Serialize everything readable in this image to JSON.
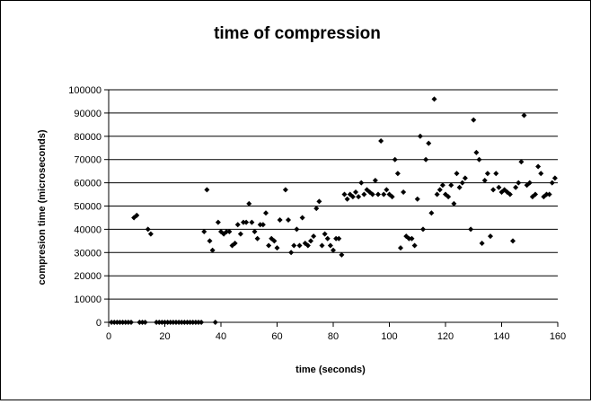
{
  "chart_data": {
    "type": "scatter",
    "title": "time of compression",
    "xlabel": "time (seconds)",
    "ylabel": "compresion time (microseconds)",
    "xlim": [
      0,
      160
    ],
    "ylim": [
      0,
      100000
    ],
    "x_ticks": [
      "0",
      "20",
      "40",
      "60",
      "80",
      "100",
      "120",
      "140",
      "160"
    ],
    "y_ticks": [
      "0",
      "10000",
      "20000",
      "30000",
      "40000",
      "50000",
      "60000",
      "70000",
      "80000",
      "90000",
      "100000"
    ],
    "grid": "horizontal",
    "legend": "none",
    "marker_color": "#000000",
    "marker": "diamond",
    "points": [
      [
        1,
        0
      ],
      [
        2,
        0
      ],
      [
        3,
        0
      ],
      [
        4,
        0
      ],
      [
        5,
        0
      ],
      [
        6,
        0
      ],
      [
        7,
        0
      ],
      [
        8,
        0
      ],
      [
        9,
        45000
      ],
      [
        10,
        46000
      ],
      [
        11,
        0
      ],
      [
        12,
        0
      ],
      [
        13,
        0
      ],
      [
        14,
        40000
      ],
      [
        15,
        38000
      ],
      [
        17,
        0
      ],
      [
        18,
        0
      ],
      [
        19,
        0
      ],
      [
        20,
        0
      ],
      [
        21,
        0
      ],
      [
        22,
        0
      ],
      [
        23,
        0
      ],
      [
        24,
        0
      ],
      [
        25,
        0
      ],
      [
        26,
        0
      ],
      [
        27,
        0
      ],
      [
        28,
        0
      ],
      [
        29,
        0
      ],
      [
        30,
        0
      ],
      [
        31,
        0
      ],
      [
        32,
        0
      ],
      [
        33,
        0
      ],
      [
        35,
        57000
      ],
      [
        34,
        39000
      ],
      [
        36,
        35000
      ],
      [
        37,
        31000
      ],
      [
        38,
        0
      ],
      [
        39,
        43000
      ],
      [
        40,
        39000
      ],
      [
        41,
        38000
      ],
      [
        42,
        39000
      ],
      [
        43,
        39000
      ],
      [
        44,
        33000
      ],
      [
        45,
        34000
      ],
      [
        46,
        42000
      ],
      [
        47,
        38000
      ],
      [
        48,
        43000
      ],
      [
        49,
        43000
      ],
      [
        50,
        51000
      ],
      [
        51,
        43000
      ],
      [
        52,
        39000
      ],
      [
        53,
        36000
      ],
      [
        54,
        42000
      ],
      [
        55,
        42000
      ],
      [
        56,
        47000
      ],
      [
        57,
        33000
      ],
      [
        58,
        36000
      ],
      [
        59,
        35000
      ],
      [
        60,
        32000
      ],
      [
        61,
        44000
      ],
      [
        63,
        57000
      ],
      [
        64,
        44000
      ],
      [
        65,
        30000
      ],
      [
        66,
        33000
      ],
      [
        67,
        40000
      ],
      [
        68,
        33000
      ],
      [
        69,
        45000
      ],
      [
        70,
        34000
      ],
      [
        71,
        33000
      ],
      [
        72,
        35000
      ],
      [
        73,
        37000
      ],
      [
        74,
        49000
      ],
      [
        75,
        52000
      ],
      [
        76,
        33000
      ],
      [
        77,
        38000
      ],
      [
        78,
        36000
      ],
      [
        79,
        33000
      ],
      [
        80,
        31000
      ],
      [
        81,
        36000
      ],
      [
        82,
        36000
      ],
      [
        83,
        29000
      ],
      [
        84,
        55000
      ],
      [
        85,
        53000
      ],
      [
        86,
        55000
      ],
      [
        87,
        54000
      ],
      [
        88,
        56000
      ],
      [
        89,
        54000
      ],
      [
        90,
        60000
      ],
      [
        91,
        55000
      ],
      [
        92,
        57000
      ],
      [
        93,
        56000
      ],
      [
        94,
        55000
      ],
      [
        95,
        61000
      ],
      [
        96,
        55000
      ],
      [
        97,
        78000
      ],
      [
        98,
        55000
      ],
      [
        99,
        57000
      ],
      [
        100,
        55000
      ],
      [
        101,
        54000
      ],
      [
        102,
        70000
      ],
      [
        103,
        64000
      ],
      [
        104,
        32000
      ],
      [
        105,
        56000
      ],
      [
        106,
        37000
      ],
      [
        107,
        36000
      ],
      [
        108,
        36000
      ],
      [
        109,
        33000
      ],
      [
        110,
        53000
      ],
      [
        111,
        80000
      ],
      [
        112,
        40000
      ],
      [
        113,
        70000
      ],
      [
        114,
        77000
      ],
      [
        115,
        47000
      ],
      [
        116,
        96000
      ],
      [
        117,
        55000
      ],
      [
        118,
        57000
      ],
      [
        119,
        59000
      ],
      [
        120,
        55000
      ],
      [
        121,
        54000
      ],
      [
        122,
        59000
      ],
      [
        123,
        51000
      ],
      [
        124,
        64000
      ],
      [
        125,
        58000
      ],
      [
        126,
        60000
      ],
      [
        127,
        62000
      ],
      [
        129,
        40000
      ],
      [
        130,
        87000
      ],
      [
        131,
        73000
      ],
      [
        132,
        70000
      ],
      [
        133,
        34000
      ],
      [
        134,
        61000
      ],
      [
        135,
        64000
      ],
      [
        136,
        37000
      ],
      [
        137,
        57000
      ],
      [
        138,
        64000
      ],
      [
        139,
        58000
      ],
      [
        140,
        56000
      ],
      [
        141,
        57000
      ],
      [
        142,
        56000
      ],
      [
        143,
        55000
      ],
      [
        144,
        35000
      ],
      [
        145,
        58000
      ],
      [
        146,
        60000
      ],
      [
        147,
        69000
      ],
      [
        148,
        89000
      ],
      [
        149,
        59000
      ],
      [
        150,
        60000
      ],
      [
        151,
        54000
      ],
      [
        152,
        55000
      ],
      [
        153,
        67000
      ],
      [
        154,
        64000
      ],
      [
        155,
        54000
      ],
      [
        156,
        55000
      ],
      [
        157,
        55000
      ],
      [
        158,
        60000
      ],
      [
        159,
        62000
      ]
    ]
  }
}
